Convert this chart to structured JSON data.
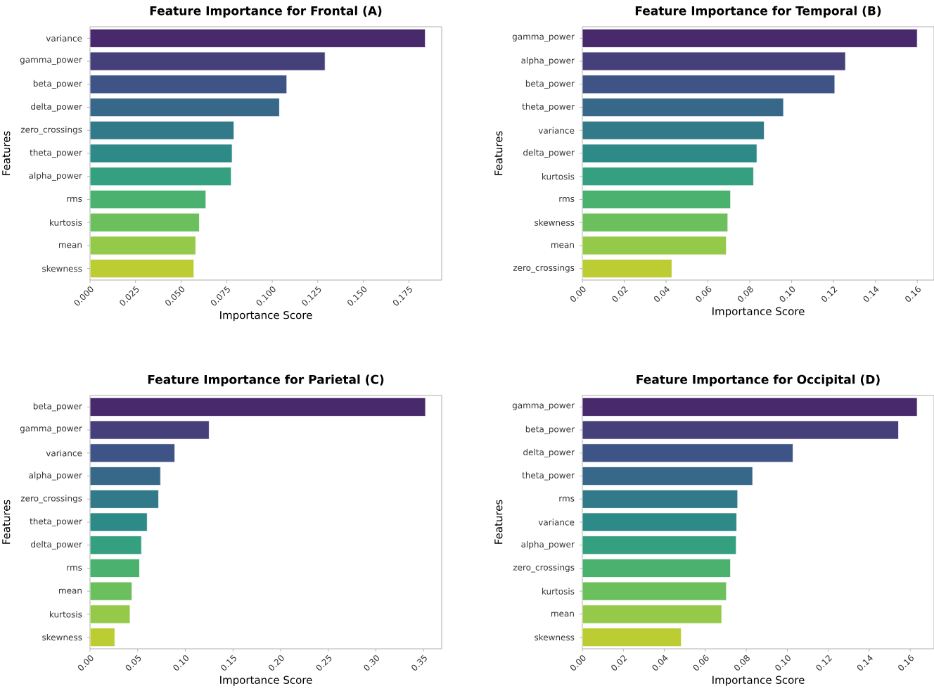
{
  "chart_data": [
    {
      "type": "bar",
      "orientation": "horizontal",
      "title": "Feature Importance for Frontal (A)",
      "xlabel": "Importance Score",
      "ylabel": "Features",
      "categories": [
        "variance",
        "gamma_power",
        "beta_power",
        "delta_power",
        "zero_crossings",
        "theta_power",
        "alpha_power",
        "rms",
        "kurtosis",
        "mean",
        "skewness"
      ],
      "values": [
        0.184,
        0.129,
        0.108,
        0.104,
        0.079,
        0.078,
        0.0775,
        0.0636,
        0.06,
        0.058,
        0.057
      ],
      "colors": [
        "#482a6c",
        "#453f7a",
        "#3f5486",
        "#386889",
        "#327a89",
        "#2d8a86",
        "#34a07f",
        "#4bb16f",
        "#6cbf5d",
        "#95c94a",
        "#bccc33"
      ],
      "xlim": [
        0,
        0.193
      ],
      "xticks": [
        {
          "value": 0,
          "label": "0.000"
        },
        {
          "value": 0.025,
          "label": "0.025"
        },
        {
          "value": 0.05,
          "label": "0.050"
        },
        {
          "value": 0.075,
          "label": "0.075"
        },
        {
          "value": 0.1,
          "label": "0.100"
        },
        {
          "value": 0.125,
          "label": "0.125"
        },
        {
          "value": 0.15,
          "label": "0.150"
        },
        {
          "value": 0.175,
          "label": "0.175"
        }
      ]
    },
    {
      "type": "bar",
      "orientation": "horizontal",
      "title": "Feature Importance for Temporal (B)",
      "xlabel": "Importance Score",
      "ylabel": "Features",
      "categories": [
        "gamma_power",
        "alpha_power",
        "beta_power",
        "theta_power",
        "variance",
        "delta_power",
        "kurtosis",
        "rms",
        "skewness",
        "mean",
        "zero_crossings"
      ],
      "values": [
        0.16,
        0.1257,
        0.1206,
        0.0961,
        0.0869,
        0.0834,
        0.0818,
        0.0708,
        0.0695,
        0.0688,
        0.0428
      ],
      "colors": [
        "#482a6c",
        "#453f7a",
        "#3f5486",
        "#386889",
        "#327a89",
        "#2d8a86",
        "#34a07f",
        "#4bb16f",
        "#6cbf5d",
        "#95c94a",
        "#bccc33"
      ],
      "xlim": [
        0,
        0.168
      ],
      "xticks": [
        {
          "value": 0,
          "label": "0.00"
        },
        {
          "value": 0.02,
          "label": "0.02"
        },
        {
          "value": 0.04,
          "label": "0.04"
        },
        {
          "value": 0.06,
          "label": "0.06"
        },
        {
          "value": 0.08,
          "label": "0.08"
        },
        {
          "value": 0.1,
          "label": "0.10"
        },
        {
          "value": 0.12,
          "label": "0.12"
        },
        {
          "value": 0.14,
          "label": "0.14"
        },
        {
          "value": 0.16,
          "label": "0.16"
        }
      ]
    },
    {
      "type": "bar",
      "orientation": "horizontal",
      "title": "Feature Importance for Parietal (C)",
      "xlabel": "Importance Score",
      "ylabel": "Features",
      "categories": [
        "beta_power",
        "gamma_power",
        "variance",
        "alpha_power",
        "zero_crossings",
        "theta_power",
        "delta_power",
        "rms",
        "mean",
        "kurtosis",
        "skewness"
      ],
      "values": [
        0.352,
        0.125,
        0.089,
        0.074,
        0.072,
        0.06,
        0.054,
        0.052,
        0.044,
        0.042,
        0.026
      ],
      "colors": [
        "#482a6c",
        "#453f7a",
        "#3f5486",
        "#386889",
        "#327a89",
        "#2d8a86",
        "#34a07f",
        "#4bb16f",
        "#6cbf5d",
        "#95c94a",
        "#bccc33"
      ],
      "xlim": [
        0,
        0.369
      ],
      "xticks": [
        {
          "value": 0,
          "label": "0.00"
        },
        {
          "value": 0.05,
          "label": "0.05"
        },
        {
          "value": 0.1,
          "label": "0.10"
        },
        {
          "value": 0.15,
          "label": "0.15"
        },
        {
          "value": 0.2,
          "label": "0.20"
        },
        {
          "value": 0.25,
          "label": "0.25"
        },
        {
          "value": 0.3,
          "label": "0.30"
        },
        {
          "value": 0.35,
          "label": "0.35"
        }
      ]
    },
    {
      "type": "bar",
      "orientation": "horizontal",
      "title": "Feature Importance for Occipital (D)",
      "xlabel": "Importance Score",
      "ylabel": "Features",
      "categories": [
        "gamma_power",
        "beta_power",
        "delta_power",
        "theta_power",
        "rms",
        "variance",
        "alpha_power",
        "zero_crossings",
        "kurtosis",
        "mean",
        "skewness"
      ],
      "values": [
        0.1634,
        0.1543,
        0.1028,
        0.0831,
        0.0758,
        0.0753,
        0.0751,
        0.0723,
        0.0703,
        0.068,
        0.0483
      ],
      "colors": [
        "#482a6c",
        "#453f7a",
        "#3f5486",
        "#386889",
        "#327a89",
        "#2d8a86",
        "#34a07f",
        "#4bb16f",
        "#6cbf5d",
        "#95c94a",
        "#bccc33"
      ],
      "xlim": [
        0,
        0.1716
      ],
      "xticks": [
        {
          "value": 0,
          "label": "0.00"
        },
        {
          "value": 0.02,
          "label": "0.02"
        },
        {
          "value": 0.04,
          "label": "0.04"
        },
        {
          "value": 0.06,
          "label": "0.06"
        },
        {
          "value": 0.08,
          "label": "0.08"
        },
        {
          "value": 0.1,
          "label": "0.10"
        },
        {
          "value": 0.12,
          "label": "0.12"
        },
        {
          "value": 0.14,
          "label": "0.14"
        },
        {
          "value": 0.16,
          "label": "0.16"
        }
      ]
    }
  ]
}
